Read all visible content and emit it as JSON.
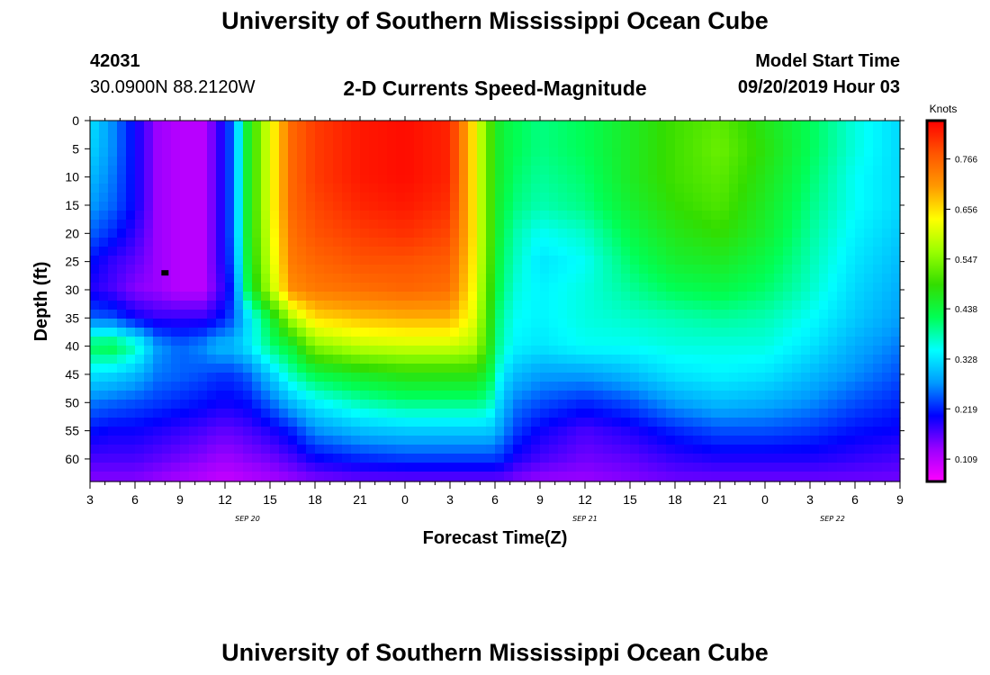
{
  "header": {
    "title": "University of Southern Mississippi Ocean Cube",
    "station_id": "42031",
    "station_coords": "30.0900N 88.2120W",
    "plot_title": "2-D Currents Speed-Magnitude",
    "model_start_label": "Model Start Time",
    "model_start_value": "09/20/2019 Hour 03"
  },
  "footer": {
    "title": "University of Southern Mississippi Ocean Cube"
  },
  "chart_data": {
    "type": "heatmap",
    "title": "2-D Currents Speed-Magnitude",
    "xlabel": "Forecast Time(Z)",
    "ylabel": "Depth (ft)",
    "x_tick_labels": [
      "3",
      "6",
      "9",
      "12",
      "15",
      "18",
      "21",
      "0",
      "3",
      "6",
      "9",
      "12",
      "15",
      "18",
      "21",
      "0",
      "3",
      "6",
      "9"
    ],
    "date_labels": [
      {
        "label": "SEP 20",
        "forecast_hour": 10.5
      },
      {
        "label": "SEP 21",
        "forecast_hour": 33
      },
      {
        "label": "SEP 22",
        "forecast_hour": 49.5
      }
    ],
    "xlim_forecast_hours": [
      0,
      54
    ],
    "y_ticks": [
      0,
      5,
      10,
      15,
      20,
      25,
      30,
      35,
      40,
      45,
      50,
      55,
      60
    ],
    "ylim": [
      0,
      64
    ],
    "colorbar": {
      "unit": "Knots",
      "ticks": [
        "0.766",
        "0.656",
        "0.547",
        "0.438",
        "0.328",
        "0.219",
        "0.109"
      ],
      "tick_values": [
        0.766,
        0.656,
        0.547,
        0.438,
        0.328,
        0.219,
        0.109
      ],
      "range": [
        0.06,
        0.85
      ],
      "colors": [
        "#ff00ff",
        "#9900ff",
        "#0000ff",
        "#0099ff",
        "#00ffff",
        "#00ff55",
        "#33dd00",
        "#99ff00",
        "#ffff00",
        "#ff9900",
        "#ff5500",
        "#ff0000"
      ]
    },
    "marker": {
      "forecast_hour": 5,
      "depth": 27
    },
    "depths": [
      0,
      5,
      10,
      15,
      20,
      25,
      30,
      35,
      40,
      45,
      50,
      55,
      60,
      64
    ],
    "hours": [
      0,
      1.5,
      3,
      4.5,
      6,
      7.5,
      8.5,
      9.5,
      10.5,
      12,
      13.5,
      15,
      18,
      21,
      24,
      25.5,
      26.5,
      27,
      27.5,
      28.5,
      30,
      33,
      36,
      39,
      42,
      45,
      48,
      51,
      54
    ],
    "speed_knots": [
      [
        0.33,
        0.27,
        0.2,
        0.13,
        0.11,
        0.11,
        0.17,
        0.25,
        0.45,
        0.62,
        0.76,
        0.8,
        0.83,
        0.84,
        0.82,
        0.66,
        0.53,
        0.47,
        0.44,
        0.42,
        0.4,
        0.42,
        0.46,
        0.5,
        0.52,
        0.47,
        0.42,
        0.36,
        0.32
      ],
      [
        0.32,
        0.27,
        0.2,
        0.13,
        0.11,
        0.11,
        0.17,
        0.25,
        0.45,
        0.62,
        0.76,
        0.8,
        0.83,
        0.84,
        0.82,
        0.66,
        0.53,
        0.47,
        0.44,
        0.42,
        0.4,
        0.42,
        0.46,
        0.5,
        0.53,
        0.48,
        0.42,
        0.36,
        0.32
      ],
      [
        0.3,
        0.26,
        0.2,
        0.13,
        0.11,
        0.11,
        0.17,
        0.25,
        0.45,
        0.62,
        0.76,
        0.8,
        0.83,
        0.84,
        0.82,
        0.66,
        0.53,
        0.47,
        0.44,
        0.41,
        0.39,
        0.41,
        0.46,
        0.5,
        0.52,
        0.47,
        0.41,
        0.35,
        0.32
      ],
      [
        0.28,
        0.25,
        0.2,
        0.13,
        0.11,
        0.11,
        0.17,
        0.25,
        0.45,
        0.62,
        0.76,
        0.79,
        0.82,
        0.83,
        0.81,
        0.66,
        0.53,
        0.47,
        0.43,
        0.4,
        0.38,
        0.4,
        0.45,
        0.49,
        0.51,
        0.46,
        0.4,
        0.35,
        0.32
      ],
      [
        0.25,
        0.22,
        0.18,
        0.13,
        0.11,
        0.11,
        0.17,
        0.25,
        0.45,
        0.61,
        0.75,
        0.78,
        0.8,
        0.81,
        0.79,
        0.66,
        0.53,
        0.47,
        0.42,
        0.38,
        0.35,
        0.37,
        0.43,
        0.47,
        0.49,
        0.45,
        0.39,
        0.34,
        0.31
      ],
      [
        0.21,
        0.18,
        0.16,
        0.13,
        0.11,
        0.11,
        0.17,
        0.24,
        0.44,
        0.6,
        0.74,
        0.76,
        0.78,
        0.78,
        0.77,
        0.65,
        0.53,
        0.46,
        0.41,
        0.37,
        0.33,
        0.35,
        0.41,
        0.45,
        0.46,
        0.43,
        0.38,
        0.33,
        0.3
      ],
      [
        0.19,
        0.17,
        0.14,
        0.13,
        0.11,
        0.11,
        0.16,
        0.22,
        0.42,
        0.58,
        0.72,
        0.74,
        0.75,
        0.76,
        0.75,
        0.64,
        0.52,
        0.45,
        0.4,
        0.36,
        0.34,
        0.36,
        0.39,
        0.42,
        0.43,
        0.41,
        0.37,
        0.32,
        0.29
      ],
      [
        0.25,
        0.24,
        0.2,
        0.18,
        0.18,
        0.18,
        0.2,
        0.24,
        0.32,
        0.44,
        0.58,
        0.66,
        0.68,
        0.69,
        0.69,
        0.62,
        0.51,
        0.43,
        0.38,
        0.35,
        0.34,
        0.36,
        0.37,
        0.38,
        0.39,
        0.38,
        0.35,
        0.31,
        0.28
      ],
      [
        0.42,
        0.43,
        0.38,
        0.28,
        0.25,
        0.27,
        0.3,
        0.3,
        0.33,
        0.4,
        0.45,
        0.55,
        0.59,
        0.6,
        0.6,
        0.58,
        0.5,
        0.42,
        0.37,
        0.34,
        0.33,
        0.35,
        0.35,
        0.36,
        0.36,
        0.36,
        0.33,
        0.29,
        0.26
      ],
      [
        0.33,
        0.32,
        0.3,
        0.26,
        0.25,
        0.24,
        0.23,
        0.23,
        0.25,
        0.31,
        0.38,
        0.43,
        0.46,
        0.48,
        0.48,
        0.48,
        0.45,
        0.39,
        0.33,
        0.3,
        0.28,
        0.28,
        0.3,
        0.33,
        0.34,
        0.33,
        0.3,
        0.27,
        0.24
      ],
      [
        0.26,
        0.25,
        0.24,
        0.23,
        0.22,
        0.21,
        0.2,
        0.2,
        0.21,
        0.25,
        0.3,
        0.34,
        0.38,
        0.4,
        0.4,
        0.4,
        0.39,
        0.35,
        0.3,
        0.26,
        0.24,
        0.22,
        0.24,
        0.28,
        0.3,
        0.29,
        0.27,
        0.24,
        0.22
      ],
      [
        0.21,
        0.2,
        0.2,
        0.19,
        0.18,
        0.17,
        0.16,
        0.16,
        0.17,
        0.19,
        0.22,
        0.27,
        0.3,
        0.31,
        0.31,
        0.31,
        0.31,
        0.3,
        0.27,
        0.23,
        0.2,
        0.17,
        0.19,
        0.22,
        0.24,
        0.24,
        0.23,
        0.21,
        0.2
      ],
      [
        0.17,
        0.17,
        0.17,
        0.16,
        0.15,
        0.14,
        0.13,
        0.13,
        0.14,
        0.15,
        0.17,
        0.2,
        0.22,
        0.23,
        0.23,
        0.23,
        0.23,
        0.23,
        0.22,
        0.19,
        0.17,
        0.15,
        0.16,
        0.18,
        0.19,
        0.19,
        0.19,
        0.18,
        0.17
      ],
      [
        0.14,
        0.14,
        0.14,
        0.13,
        0.12,
        0.11,
        0.1,
        0.1,
        0.11,
        0.12,
        0.13,
        0.14,
        0.15,
        0.15,
        0.15,
        0.15,
        0.15,
        0.15,
        0.15,
        0.14,
        0.13,
        0.13,
        0.14,
        0.15,
        0.15,
        0.15,
        0.15,
        0.15,
        0.15
      ]
    ]
  }
}
